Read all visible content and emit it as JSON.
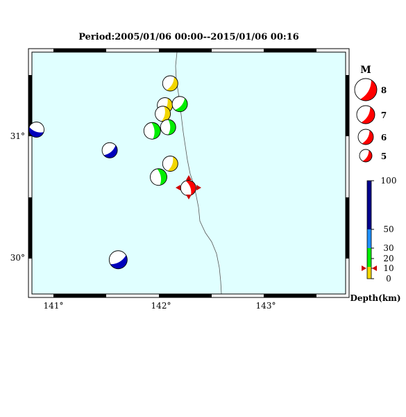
{
  "title": "Period:2005/01/06 00:00--2015/01/06 00:16",
  "map": {
    "sea_color": "#e0ffff",
    "lon_ticks": [
      "141°",
      "142°",
      "143°"
    ],
    "lat_ticks": [
      "31°",
      "30°"
    ]
  },
  "events": [
    {
      "lon": 142.1,
      "lat": 31.44,
      "depth_band": "shallow",
      "color": "#f2d600"
    },
    {
      "lon": 142.05,
      "lat": 31.26,
      "depth_band": "shallow",
      "color": "#f2d600"
    },
    {
      "lon": 142.03,
      "lat": 31.19,
      "depth_band": "shallow",
      "color": "#f2d600"
    },
    {
      "lon": 142.19,
      "lat": 31.27,
      "depth_band": "intermediate",
      "color": "#00ee00"
    },
    {
      "lon": 142.08,
      "lat": 31.08,
      "depth_band": "intermediate",
      "color": "#00ee00"
    },
    {
      "lon": 141.93,
      "lat": 31.05,
      "depth_band": "intermediate",
      "color": "#00ee00"
    },
    {
      "lon": 142.1,
      "lat": 30.78,
      "depth_band": "shallow",
      "color": "#f2d600"
    },
    {
      "lon": 141.99,
      "lat": 30.67,
      "depth_band": "intermediate",
      "color": "#00ee00"
    },
    {
      "lon": 142.27,
      "lat": 30.58,
      "depth_band": "selected",
      "color": "#ff0000"
    },
    {
      "lon": 140.84,
      "lat": 31.06,
      "depth_band": "deep",
      "color": "#0000bb"
    },
    {
      "lon": 141.53,
      "lat": 30.89,
      "depth_band": "deep",
      "color": "#0000bb"
    },
    {
      "lon": 141.61,
      "lat": 29.99,
      "depth_band": "deep",
      "color": "#0000bb"
    }
  ],
  "legend": {
    "magnitude_title": "M",
    "magnitudes": [
      "8",
      "7",
      "6",
      "5"
    ],
    "depth_title": "Depth(km)",
    "depth_ticks": [
      "100",
      "50",
      "30",
      "20",
      "10",
      "0"
    ],
    "depth_colors": [
      "#00008b",
      "#1e90ff",
      "#00ee00",
      "#f2d600"
    ]
  }
}
